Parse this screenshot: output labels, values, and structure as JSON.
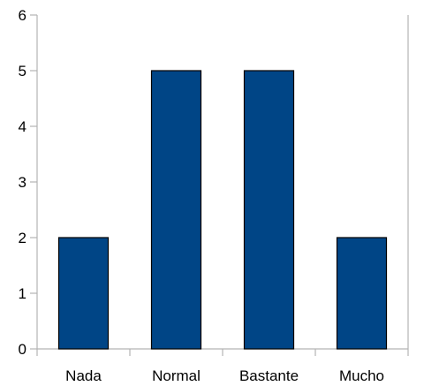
{
  "chart_data": {
    "type": "bar",
    "categories": [
      "Nada",
      "Normal",
      "Bastante",
      "Mucho"
    ],
    "values": [
      2,
      5,
      5,
      2
    ],
    "title": "",
    "xlabel": "",
    "ylabel": "",
    "ylim": [
      0,
      6
    ],
    "yticks": [
      "0",
      "1",
      "2",
      "3",
      "4",
      "5",
      "6"
    ],
    "grid": false,
    "legend": "none",
    "colors": {
      "bar_fill": "#004586",
      "bar_stroke": "#000000",
      "axis": "#b3b3b3"
    }
  }
}
